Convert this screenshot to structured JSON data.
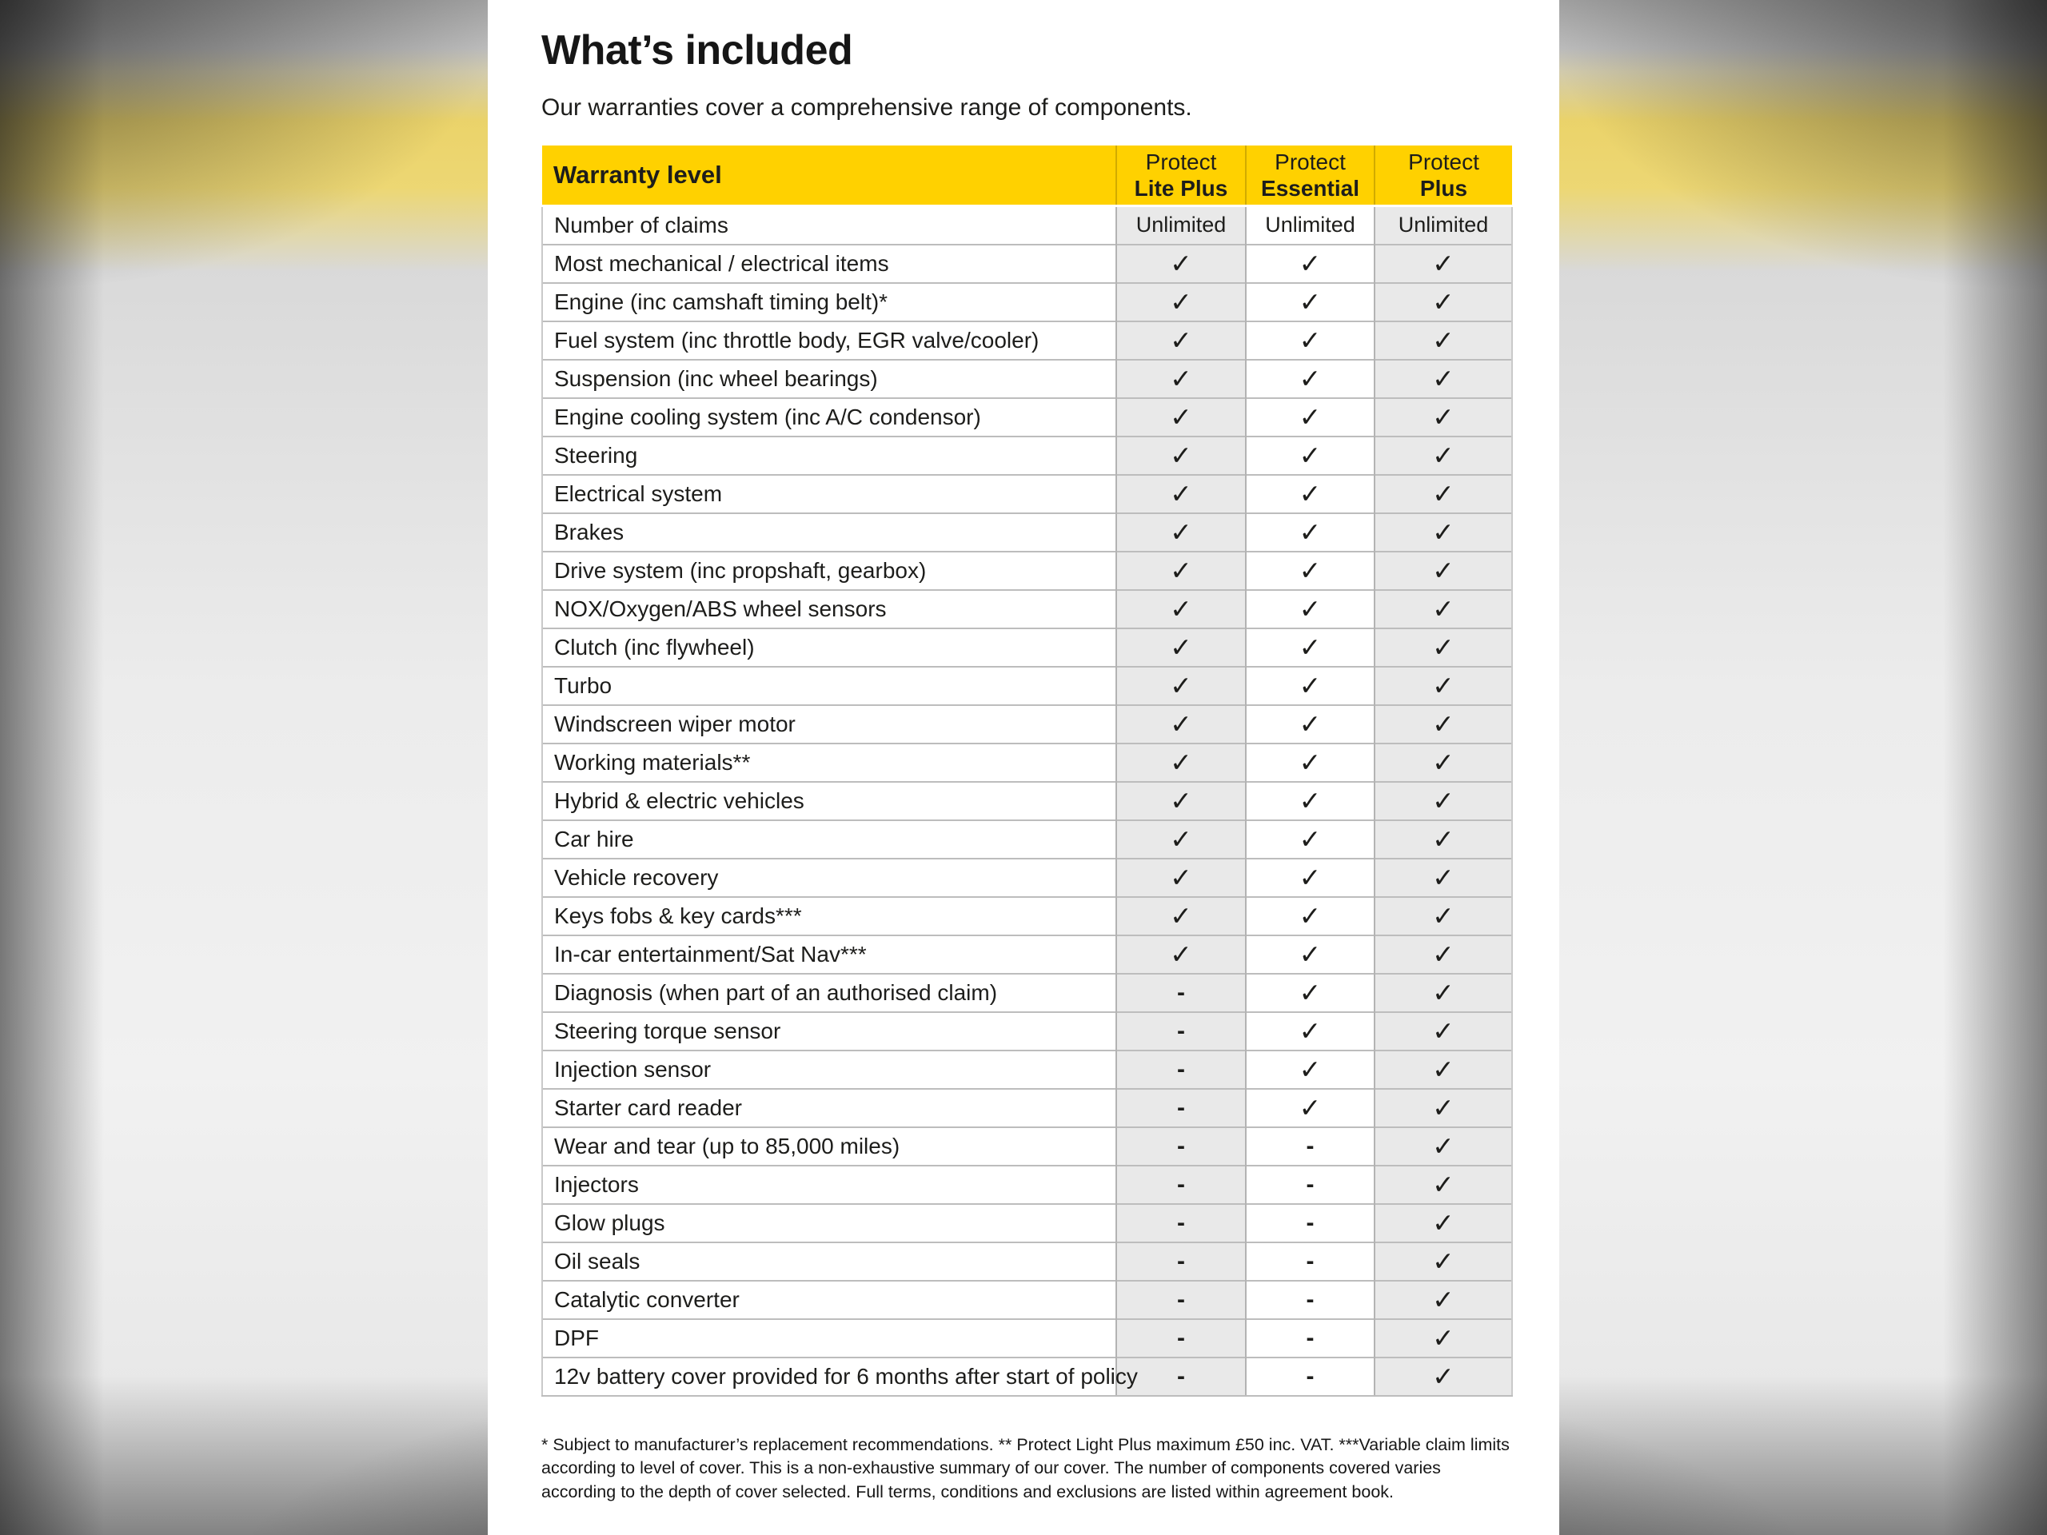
{
  "page": {
    "title": "What’s included",
    "subtitle": "Our warranties cover a comprehensive range of components.",
    "footnote": "* Subject to manufacturer’s replacement recommendations. ** Protect Light Plus maximum £50 inc. VAT. ***Variable claim limits according to level of cover. This is a non-exhaustive summary of our cover. The number of components covered varies according to the depth of cover selected. Full terms, conditions and exclusions are listed within agreement book."
  },
  "colors": {
    "header_yellow": "#FFD100",
    "shaded_column": "#E9E9E9",
    "text": "#1D1D1B"
  },
  "table": {
    "header": {
      "row_label": "Warranty level",
      "columns": [
        {
          "line1": "Protect",
          "line2": "Lite Plus"
        },
        {
          "line1": "Protect",
          "line2": "Essential"
        },
        {
          "line1": "Protect",
          "line2": "Plus"
        }
      ]
    },
    "symbols": {
      "included": "✓",
      "excluded": "-"
    },
    "rows": [
      {
        "label": "Number of claims",
        "values": [
          "Unlimited",
          "Unlimited",
          "Unlimited"
        ]
      },
      {
        "label": "Most mechanical / electrical items",
        "values": [
          "check",
          "check",
          "check"
        ]
      },
      {
        "label": "Engine (inc camshaft timing belt)*",
        "values": [
          "check",
          "check",
          "check"
        ]
      },
      {
        "label": "Fuel system (inc throttle body, EGR valve/cooler)",
        "values": [
          "check",
          "check",
          "check"
        ]
      },
      {
        "label": "Suspension (inc wheel bearings)",
        "values": [
          "check",
          "check",
          "check"
        ]
      },
      {
        "label": "Engine cooling system (inc A/C condensor)",
        "values": [
          "check",
          "check",
          "check"
        ]
      },
      {
        "label": "Steering",
        "values": [
          "check",
          "check",
          "check"
        ]
      },
      {
        "label": "Electrical system",
        "values": [
          "check",
          "check",
          "check"
        ]
      },
      {
        "label": "Brakes",
        "values": [
          "check",
          "check",
          "check"
        ]
      },
      {
        "label": "Drive system (inc propshaft, gearbox)",
        "values": [
          "check",
          "check",
          "check"
        ]
      },
      {
        "label": "NOX/Oxygen/ABS wheel sensors",
        "values": [
          "check",
          "check",
          "check"
        ]
      },
      {
        "label": "Clutch (inc flywheel)",
        "values": [
          "check",
          "check",
          "check"
        ]
      },
      {
        "label": "Turbo",
        "values": [
          "check",
          "check",
          "check"
        ]
      },
      {
        "label": "Windscreen wiper motor",
        "values": [
          "check",
          "check",
          "check"
        ]
      },
      {
        "label": "Working materials**",
        "values": [
          "check",
          "check",
          "check"
        ]
      },
      {
        "label": "Hybrid & electric vehicles",
        "values": [
          "check",
          "check",
          "check"
        ]
      },
      {
        "label": "Car hire",
        "values": [
          "check",
          "check",
          "check"
        ]
      },
      {
        "label": "Vehicle recovery",
        "values": [
          "check",
          "check",
          "check"
        ]
      },
      {
        "label": "Keys fobs & key cards***",
        "values": [
          "check",
          "check",
          "check"
        ]
      },
      {
        "label": "In-car entertainment/Sat Nav***",
        "values": [
          "check",
          "check",
          "check"
        ]
      },
      {
        "label": "Diagnosis (when part of an authorised claim)",
        "values": [
          "dash",
          "check",
          "check"
        ]
      },
      {
        "label": "Steering torque sensor",
        "values": [
          "dash",
          "check",
          "check"
        ]
      },
      {
        "label": "Injection sensor",
        "values": [
          "dash",
          "check",
          "check"
        ]
      },
      {
        "label": "Starter card reader",
        "values": [
          "dash",
          "check",
          "check"
        ]
      },
      {
        "label": "Wear and tear (up to 85,000 miles)",
        "values": [
          "dash",
          "dash",
          "check"
        ]
      },
      {
        "label": "Injectors",
        "values": [
          "dash",
          "dash",
          "check"
        ]
      },
      {
        "label": "Glow plugs",
        "values": [
          "dash",
          "dash",
          "check"
        ]
      },
      {
        "label": "Oil seals",
        "values": [
          "dash",
          "dash",
          "check"
        ]
      },
      {
        "label": "Catalytic converter",
        "values": [
          "dash",
          "dash",
          "check"
        ]
      },
      {
        "label": "DPF",
        "values": [
          "dash",
          "dash",
          "check"
        ]
      },
      {
        "label": "12v battery cover provided for 6 months after start of policy",
        "values": [
          "dash",
          "dash",
          "check"
        ]
      }
    ]
  }
}
